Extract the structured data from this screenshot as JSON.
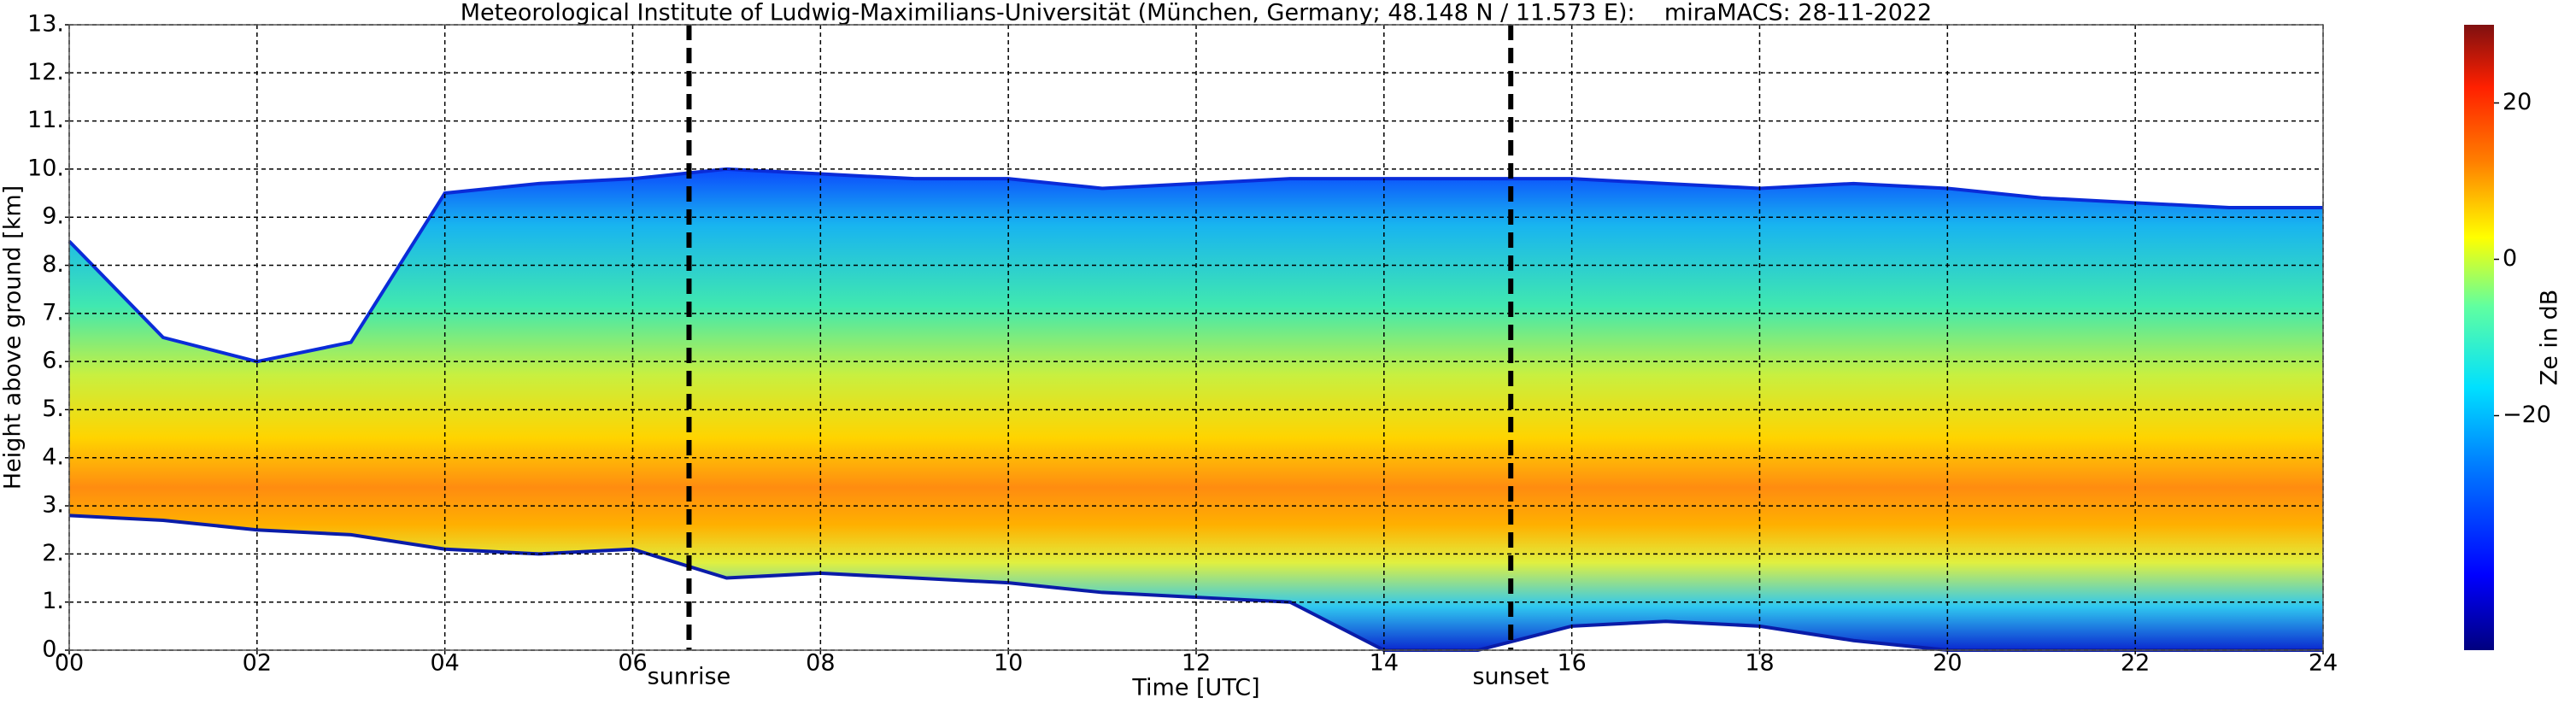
{
  "chart_data": {
    "type": "area",
    "title": "Meteorological Institute of Ludwig-Maximilians-Universität (München, Germany; 48.148 N / 11.573 E):    miraMACS: 28-11-2022",
    "xlabel": "Time [UTC]",
    "ylabel": "Height above ground [km]",
    "x": [
      0,
      1,
      2,
      3,
      4,
      5,
      6,
      7,
      8,
      9,
      10,
      11,
      12,
      13,
      14,
      15,
      16,
      17,
      18,
      19,
      20,
      21,
      22,
      23,
      24
    ],
    "top": [
      8.5,
      6.5,
      6,
      6.4,
      9.5,
      9.7,
      9.8,
      10,
      9.9,
      9.8,
      9.8,
      9.6,
      9.7,
      9.8,
      9.8,
      9.8,
      9.8,
      9.7,
      9.6,
      9.7,
      9.6,
      9.4,
      9.3,
      9.2,
      9.2
    ],
    "base": [
      2.8,
      2.7,
      2.5,
      2.4,
      2.1,
      2,
      2.1,
      1.5,
      1.6,
      1.5,
      1.4,
      1.2,
      1.1,
      1,
      0,
      0,
      0.5,
      0.6,
      0.5,
      0.2,
      0,
      0,
      0,
      0,
      0
    ],
    "xlim": [
      0,
      24
    ],
    "xticks": [
      {
        "value": 0,
        "label": "00"
      },
      {
        "value": 2,
        "label": "02"
      },
      {
        "value": 4,
        "label": "04"
      },
      {
        "value": 6,
        "label": "06"
      },
      {
        "value": 8,
        "label": "08"
      },
      10,
      12,
      14,
      16,
      18,
      20,
      22,
      24
    ],
    "ylim": [
      0,
      13
    ],
    "yticks": [
      {
        "value": 0,
        "label": "0."
      },
      {
        "value": 1,
        "label": "1."
      },
      {
        "value": 2,
        "label": "2."
      },
      {
        "value": 3,
        "label": "3."
      },
      {
        "value": 4,
        "label": "4."
      },
      {
        "value": 5,
        "label": "5."
      },
      {
        "value": 6,
        "label": "6."
      },
      {
        "value": 7,
        "label": "7."
      },
      {
        "value": 8,
        "label": "8."
      },
      {
        "value": 9,
        "label": "9."
      },
      {
        "value": 10,
        "label": "10."
      },
      {
        "value": 11,
        "label": "11."
      },
      {
        "value": 12,
        "label": "12."
      },
      {
        "value": 13,
        "label": "13."
      }
    ],
    "grid": true,
    "annotations": [
      {
        "x": 6.6,
        "label": "sunrise"
      },
      {
        "x": 15.35,
        "label": "sunset"
      }
    ],
    "colorbar": {
      "label": "Ze in dB",
      "lim": [
        -50,
        30
      ],
      "ticks": [
        {
          "value": -20,
          "label": "−20"
        },
        0,
        20
      ]
    }
  }
}
